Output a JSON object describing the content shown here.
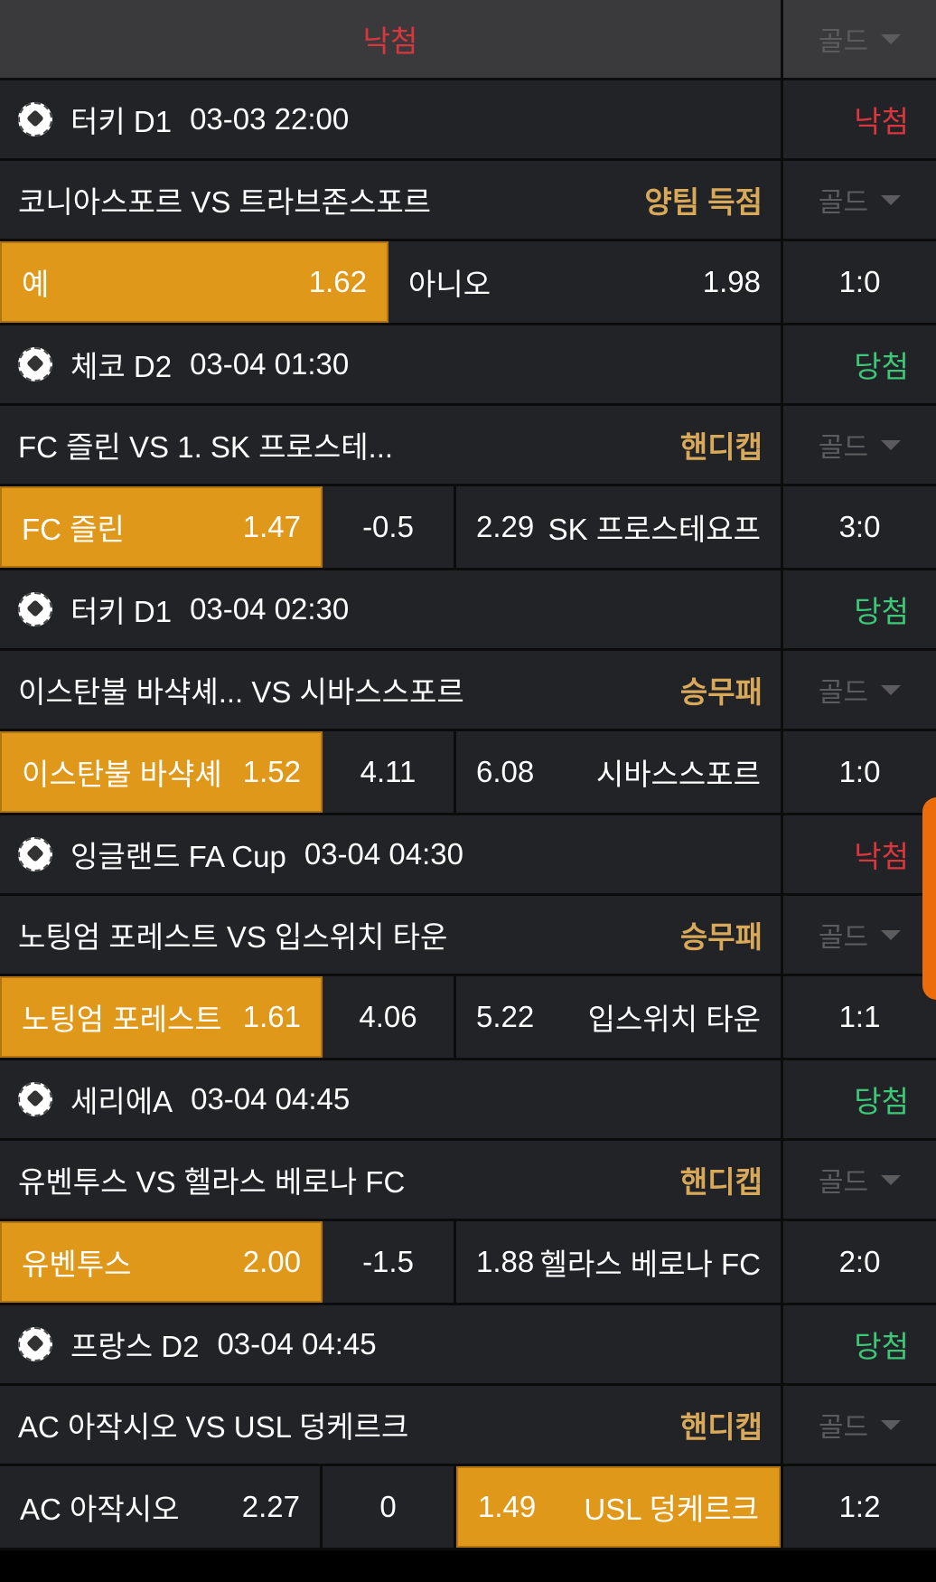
{
  "header": {
    "title": "낙첨",
    "gold_label": "골드"
  },
  "colors": {
    "orange": "#e0981a",
    "lost": "#d9363e",
    "won": "#3cc878",
    "market": "#d9a95a"
  },
  "icons": {
    "league": "soccer-ball-icon",
    "dropdown": "caret-down-icon"
  },
  "matches": [
    {
      "league": "터키 D1",
      "time": "03-03 22:00",
      "result": "낙첨",
      "result_type": "lost",
      "teams": "코니아스포르 VS 트라브존스포르",
      "market": "양팀 득점",
      "gold": "골드",
      "odds_type": 2,
      "options": [
        {
          "label": "예",
          "value": "1.62",
          "selected": true
        },
        {
          "label": "아니오",
          "value": "1.98",
          "selected": false
        }
      ],
      "score": "1:0"
    },
    {
      "league": "체코 D2",
      "time": "03-04 01:30",
      "result": "당첨",
      "result_type": "won",
      "teams": "FC 즐린 VS 1. SK 프로스테...",
      "market": "핸디캡",
      "gold": "골드",
      "odds_type": 3,
      "options": [
        {
          "label": "FC 즐린",
          "value": "1.47",
          "selected": true
        },
        {
          "label": "",
          "value": "-0.5",
          "selected": false
        },
        {
          "label": "SK 프로스테요프",
          "value": "2.29",
          "selected": false
        }
      ],
      "score": "3:0"
    },
    {
      "league": "터키 D1",
      "time": "03-04 02:30",
      "result": "당첨",
      "result_type": "won",
      "teams": "이스탄불 바샥셰...  VS 시바스스포르",
      "market": "승무패",
      "gold": "골드",
      "odds_type": 3,
      "options": [
        {
          "label": "이스탄불 바샥셰",
          "value": "1.52",
          "selected": true
        },
        {
          "label": "",
          "value": "4.11",
          "selected": false
        },
        {
          "label": "시바스스포르",
          "value": "6.08",
          "selected": false
        }
      ],
      "score": "1:0"
    },
    {
      "league": "잉글랜드 FA Cup",
      "time": "03-04 04:30",
      "result": "낙첨",
      "result_type": "lost",
      "teams": "노팅엄 포레스트 VS 입스위치 타운",
      "market": "승무패",
      "gold": "골드",
      "odds_type": 3,
      "options": [
        {
          "label": "노팅엄 포레스트",
          "value": "1.61",
          "selected": true
        },
        {
          "label": "",
          "value": "4.06",
          "selected": false
        },
        {
          "label": "입스위치 타운",
          "value": "5.22",
          "selected": false
        }
      ],
      "score": "1:1"
    },
    {
      "league": "세리에A",
      "time": "03-04 04:45",
      "result": "당첨",
      "result_type": "won",
      "teams": "유벤투스 VS 헬라스 베로나 FC",
      "market": "핸디캡",
      "gold": "골드",
      "odds_type": 3,
      "options": [
        {
          "label": "유벤투스",
          "value": "2.00",
          "selected": true
        },
        {
          "label": "",
          "value": "-1.5",
          "selected": false
        },
        {
          "label": "헬라스 베로나 FC",
          "value": "1.88",
          "selected": false
        }
      ],
      "score": "2:0"
    },
    {
      "league": "프랑스 D2",
      "time": "03-04 04:45",
      "result": "당첨",
      "result_type": "won",
      "teams": "AC 아작시오 VS USL 덩케르크",
      "market": "핸디캡",
      "gold": "골드",
      "odds_type": 3,
      "options": [
        {
          "label": "AC 아작시오",
          "value": "2.27",
          "selected": false
        },
        {
          "label": "",
          "value": "0",
          "selected": false
        },
        {
          "label": "USL 덩케르크",
          "value": "1.49",
          "selected": true
        }
      ],
      "score": "1:2"
    }
  ]
}
